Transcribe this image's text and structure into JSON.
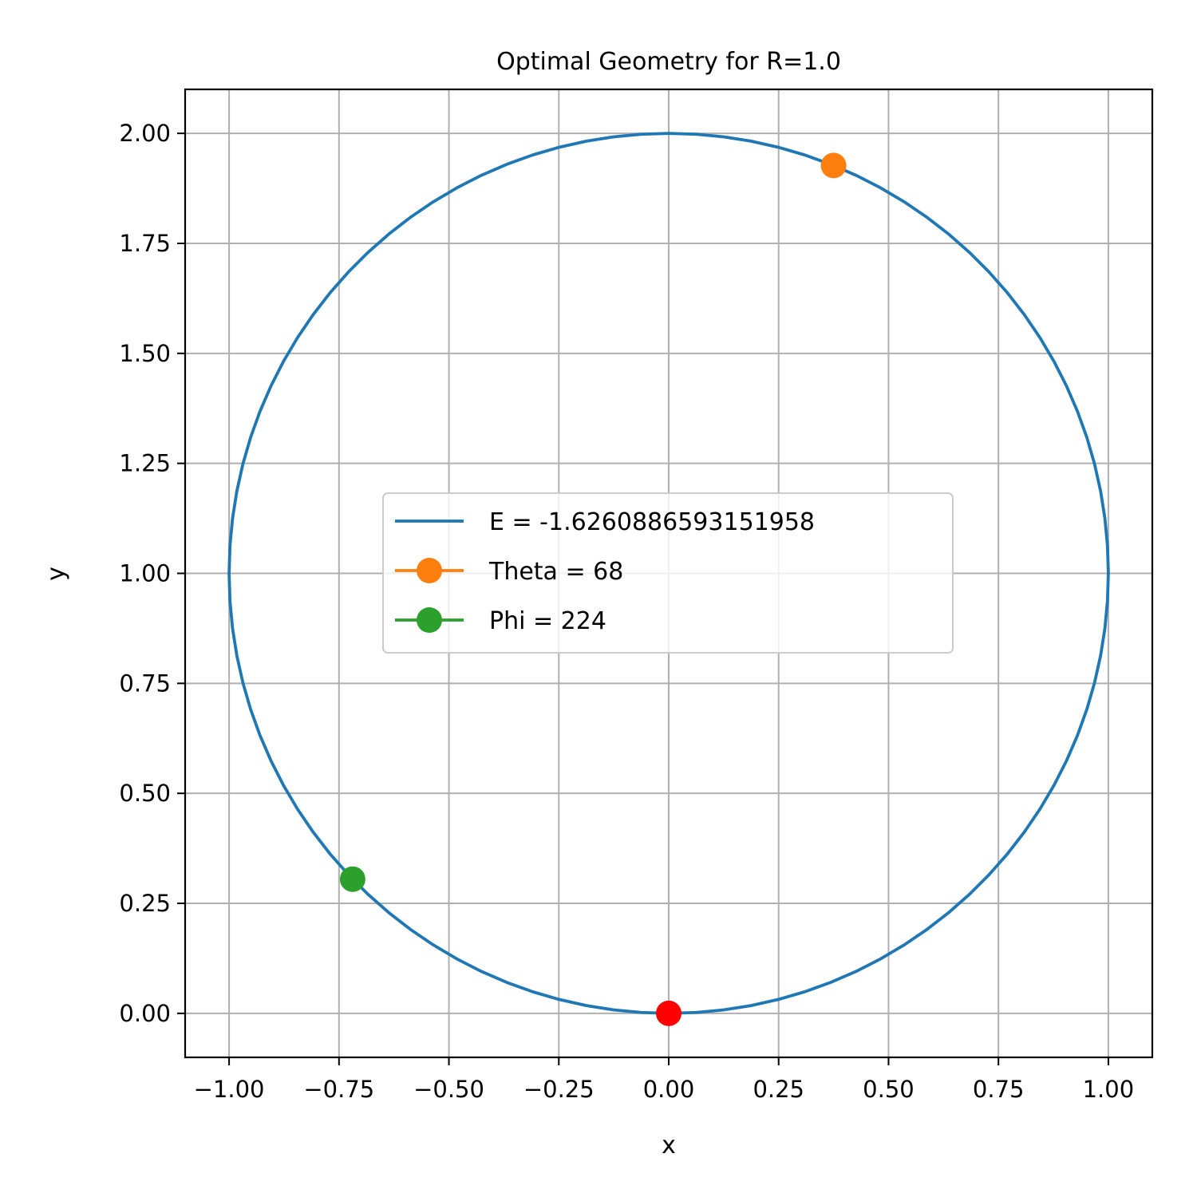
{
  "chart_data": {
    "type": "line",
    "title": "Optimal Geometry for R=1.0",
    "xlabel": "x",
    "ylabel": "y",
    "xlim": [
      -1.1,
      1.1
    ],
    "ylim": [
      -0.1,
      2.1
    ],
    "xticks": [
      -1.0,
      -0.75,
      -0.5,
      -0.25,
      0.0,
      0.25,
      0.5,
      0.75,
      1.0
    ],
    "xtick_labels": [
      "−1.00",
      "−0.75",
      "−0.50",
      "−0.25",
      "0.00",
      "0.25",
      "0.50",
      "0.75",
      "1.00"
    ],
    "yticks": [
      0.0,
      0.25,
      0.5,
      0.75,
      1.0,
      1.25,
      1.5,
      1.75,
      2.0
    ],
    "ytick_labels": [
      "0.00",
      "0.25",
      "0.50",
      "0.75",
      "1.00",
      "1.25",
      "1.50",
      "1.75",
      "2.00"
    ],
    "grid": true,
    "legend_position": "center",
    "series": [
      {
        "name": "E = -1.6260886593151958",
        "kind": "circle-line",
        "color": "#1f77b4",
        "center": [
          0,
          1
        ],
        "radius": 1
      },
      {
        "name": "Theta = 68",
        "kind": "marker",
        "color": "#ff7f0e",
        "x": [
          0.375
        ],
        "y": [
          1.927
        ]
      },
      {
        "name": "Phi = 224",
        "kind": "marker",
        "color": "#2ca02c",
        "x": [
          -0.719
        ],
        "y": [
          0.305
        ]
      }
    ],
    "extra_points": [
      {
        "x": 0.0,
        "y": 0.0,
        "color": "#ff0000"
      }
    ]
  }
}
